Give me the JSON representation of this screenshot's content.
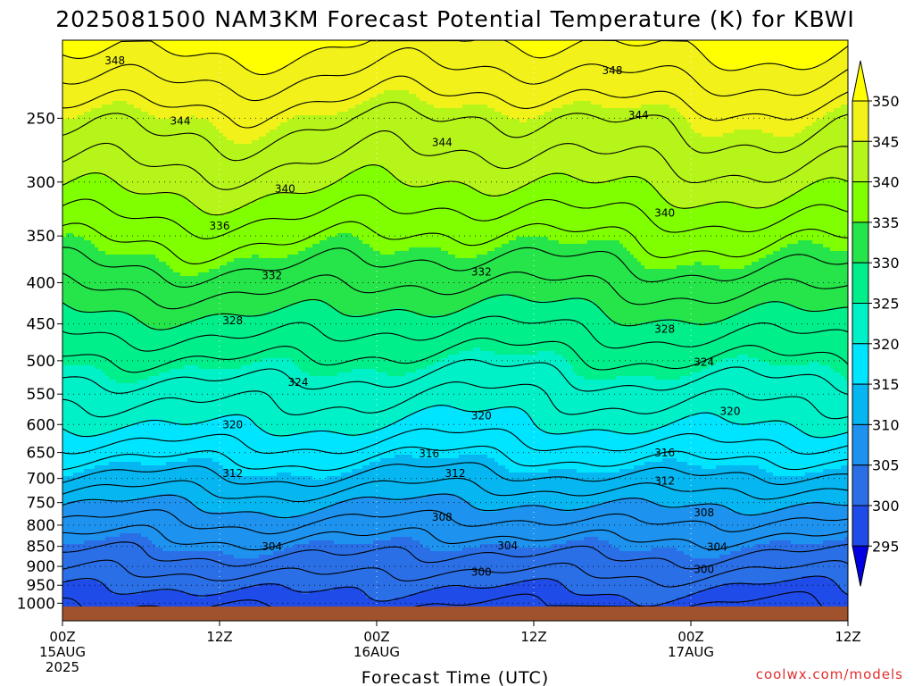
{
  "chart_data": {
    "type": "heatmap",
    "title": "2025081500 NAM3KM Forecast Potential Temperature (K) for KBWI",
    "xlabel": "Forecast Time (UTC)",
    "ylabel": "",
    "credit": "coolwx.com/models",
    "x_ticks": [
      {
        "hour": 0,
        "label": "00Z",
        "sub1": "15AUG",
        "sub2": "2025"
      },
      {
        "hour": 12,
        "label": "12Z",
        "sub1": "",
        "sub2": ""
      },
      {
        "hour": 24,
        "label": "00Z",
        "sub1": "16AUG",
        "sub2": ""
      },
      {
        "hour": 36,
        "label": "12Z",
        "sub1": "",
        "sub2": ""
      },
      {
        "hour": 48,
        "label": "00Z",
        "sub1": "17AUG",
        "sub2": ""
      },
      {
        "hour": 60,
        "label": "12Z",
        "sub1": "",
        "sub2": ""
      }
    ],
    "xlim_hours": [
      0,
      60
    ],
    "y_ticks": [
      "250",
      "300",
      "350",
      "400",
      "450",
      "500",
      "550",
      "600",
      "650",
      "700",
      "750",
      "800",
      "850",
      "900",
      "950",
      "1000"
    ],
    "y_tick_values": [
      250,
      300,
      350,
      400,
      450,
      500,
      550,
      600,
      650,
      700,
      750,
      800,
      850,
      900,
      950,
      1000
    ],
    "ylim_hPa": [
      200,
      1012
    ],
    "colorbar": {
      "levels": [
        295,
        300,
        305,
        310,
        315,
        320,
        325,
        330,
        335,
        340,
        345,
        350
      ],
      "colors": [
        "#0000e0",
        "#1f4be8",
        "#2a6fe6",
        "#1d93ef",
        "#06b6f0",
        "#00e5ff",
        "#00f0c8",
        "#00ef8a",
        "#25e54a",
        "#7fff00",
        "#b6f51a",
        "#f2f21a",
        "#ffff00"
      ]
    },
    "contour_levels": [
      298,
      300,
      302,
      304,
      306,
      308,
      310,
      312,
      314,
      316,
      318,
      320,
      322,
      324,
      326,
      328,
      330,
      332,
      334,
      336,
      338,
      340,
      342,
      344,
      346,
      348,
      350
    ],
    "profile": [
      {
        "p": 200,
        "theta": 350.5
      },
      {
        "p": 225,
        "theta": 347.5
      },
      {
        "p": 250,
        "theta": 344.5
      },
      {
        "p": 300,
        "theta": 340.5
      },
      {
        "p": 350,
        "theta": 336.2
      },
      {
        "p": 400,
        "theta": 332.5
      },
      {
        "p": 450,
        "theta": 328.8
      },
      {
        "p": 500,
        "theta": 325.5
      },
      {
        "p": 550,
        "theta": 322.5
      },
      {
        "p": 600,
        "theta": 320
      },
      {
        "p": 650,
        "theta": 316.8
      },
      {
        "p": 700,
        "theta": 313.5
      },
      {
        "p": 750,
        "theta": 310.3
      },
      {
        "p": 800,
        "theta": 307.5
      },
      {
        "p": 850,
        "theta": 305
      },
      {
        "p": 900,
        "theta": 302.8
      },
      {
        "p": 950,
        "theta": 300.5
      },
      {
        "p": 1000,
        "theta": 298.5
      }
    ],
    "contour_labels": [
      {
        "value": "348",
        "hour": 4,
        "p": 212
      },
      {
        "value": "348",
        "hour": 42,
        "p": 218
      },
      {
        "value": "344",
        "hour": 9,
        "p": 252
      },
      {
        "value": "344",
        "hour": 29,
        "p": 268
      },
      {
        "value": "344",
        "hour": 44,
        "p": 248
      },
      {
        "value": "340",
        "hour": 17,
        "p": 306
      },
      {
        "value": "340",
        "hour": 46,
        "p": 328
      },
      {
        "value": "336",
        "hour": 12,
        "p": 340
      },
      {
        "value": "332",
        "hour": 16,
        "p": 392
      },
      {
        "value": "332",
        "hour": 32,
        "p": 388
      },
      {
        "value": "328",
        "hour": 13,
        "p": 446
      },
      {
        "value": "328",
        "hour": 46,
        "p": 457
      },
      {
        "value": "324",
        "hour": 18,
        "p": 532
      },
      {
        "value": "324",
        "hour": 49,
        "p": 502
      },
      {
        "value": "320",
        "hour": 13,
        "p": 600
      },
      {
        "value": "320",
        "hour": 32,
        "p": 585
      },
      {
        "value": "320",
        "hour": 51,
        "p": 578
      },
      {
        "value": "316",
        "hour": 28,
        "p": 652
      },
      {
        "value": "316",
        "hour": 46,
        "p": 651
      },
      {
        "value": "312",
        "hour": 13,
        "p": 690
      },
      {
        "value": "312",
        "hour": 30,
        "p": 690
      },
      {
        "value": "312",
        "hour": 46,
        "p": 705
      },
      {
        "value": "308",
        "hour": 29,
        "p": 782
      },
      {
        "value": "308",
        "hour": 49,
        "p": 772
      },
      {
        "value": "304",
        "hour": 16,
        "p": 851
      },
      {
        "value": "304",
        "hour": 34,
        "p": 848
      },
      {
        "value": "304",
        "hour": 50,
        "p": 852
      },
      {
        "value": "300",
        "hour": 32,
        "p": 915
      },
      {
        "value": "300",
        "hour": 49,
        "p": 908
      }
    ]
  }
}
